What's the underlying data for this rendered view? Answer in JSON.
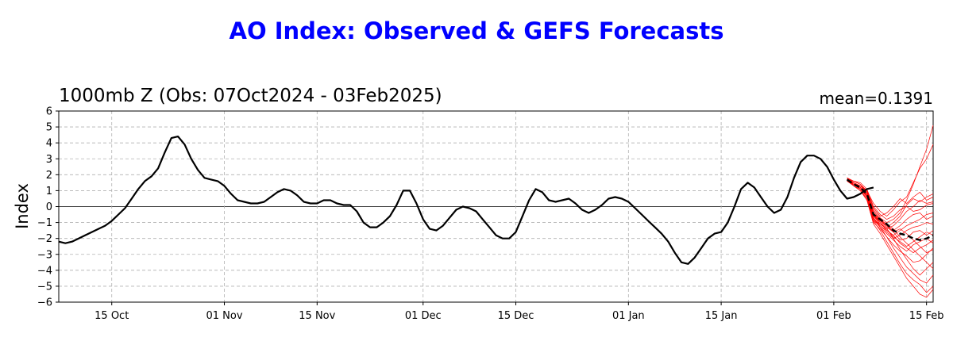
{
  "chart_data": {
    "type": "line",
    "title": "AO Index: Observed & GEFS Forecasts",
    "subtitle": "1000mb Z (Obs: 07Oct2024 - 03Feb2025)",
    "mean_label": "mean=0.1391",
    "ylabel": "Index",
    "xlim": [
      "2024-10-07",
      "2025-02-16"
    ],
    "ylim": [
      -6,
      6
    ],
    "yticks": [
      -6,
      -5,
      -4,
      -3,
      -2,
      -1,
      0,
      1,
      2,
      3,
      4,
      5,
      6
    ],
    "xticks": [
      {
        "date": "2024-10-15",
        "label": "15 Oct"
      },
      {
        "date": "2024-11-01",
        "label": "01 Nov"
      },
      {
        "date": "2024-11-15",
        "label": "15 Nov"
      },
      {
        "date": "2024-12-01",
        "label": "01 Dec"
      },
      {
        "date": "2024-12-15",
        "label": "15 Dec"
      },
      {
        "date": "2025-01-01",
        "label": "01 Jan"
      },
      {
        "date": "2025-01-15",
        "label": "15 Jan"
      },
      {
        "date": "2025-02-01",
        "label": "01 Feb"
      },
      {
        "date": "2025-02-15",
        "label": "15 Feb"
      }
    ],
    "grid": true,
    "colors": {
      "observed": "#000000",
      "ensemble": "#ff0000",
      "mean": "#000000",
      "title": "#0000ff"
    },
    "observed": {
      "start": "2024-10-07",
      "values": [
        -2.2,
        -2.3,
        -2.2,
        -2.0,
        -1.8,
        -1.6,
        -1.4,
        -1.2,
        -0.9,
        -0.5,
        -0.1,
        0.5,
        1.1,
        1.6,
        1.9,
        2.4,
        3.4,
        4.3,
        4.4,
        3.9,
        3.0,
        2.3,
        1.8,
        1.7,
        1.6,
        1.3,
        0.8,
        0.4,
        0.3,
        0.2,
        0.2,
        0.3,
        0.6,
        0.9,
        1.1,
        1.0,
        0.7,
        0.3,
        0.2,
        0.2,
        0.4,
        0.4,
        0.2,
        0.1,
        0.1,
        -0.3,
        -1.0,
        -1.3,
        -1.3,
        -1.0,
        -0.6,
        0.1,
        1.0,
        1.0,
        0.2,
        -0.8,
        -1.4,
        -1.5,
        -1.2,
        -0.7,
        -0.2,
        0.0,
        -0.1,
        -0.3,
        -0.8,
        -1.3,
        -1.8,
        -2.0,
        -2.0,
        -1.6,
        -0.6,
        0.4,
        1.1,
        0.9,
        0.4,
        0.3,
        0.4,
        0.5,
        0.2,
        -0.2,
        -0.4,
        -0.2,
        0.1,
        0.5,
        0.6,
        0.5,
        0.3,
        -0.1,
        -0.5,
        -0.9,
        -1.3,
        -1.7,
        -2.2,
        -2.9,
        -3.5,
        -3.6,
        -3.2,
        -2.6,
        -2.0,
        -1.7,
        -1.6,
        -1.0,
        0.0,
        1.1,
        1.5,
        1.2,
        0.6,
        0.0,
        -0.4,
        -0.2,
        0.6,
        1.8,
        2.8,
        3.2,
        3.2,
        3.0,
        2.5,
        1.7,
        1.0,
        0.5,
        0.6,
        0.8,
        1.1,
        1.2
      ]
    },
    "ensemble_mean": {
      "x": [
        "2025-02-03",
        "2025-02-04",
        "2025-02-05",
        "2025-02-06",
        "2025-02-07",
        "2025-02-08",
        "2025-02-09",
        "2025-02-10",
        "2025-02-11",
        "2025-02-12",
        "2025-02-13",
        "2025-02-14",
        "2025-02-15",
        "2025-02-16"
      ],
      "values": [
        1.7,
        1.4,
        1.2,
        0.8,
        -0.5,
        -0.8,
        -1.1,
        -1.5,
        -1.7,
        -1.8,
        -2.0,
        -2.1,
        -2.0,
        -1.8
      ]
    },
    "ensemble_members_start": "2025-02-03",
    "ensemble_members": [
      [
        1.8,
        1.5,
        1.3,
        1.0,
        0.2,
        -0.3,
        -0.6,
        -0.2,
        0.3,
        0.6,
        1.5,
        2.4,
        3.0,
        3.9
      ],
      [
        1.7,
        1.6,
        1.4,
        0.9,
        -0.2,
        -0.7,
        -1.0,
        -0.8,
        -0.4,
        0.4,
        1.4,
        2.5,
        3.6,
        5.1
      ],
      [
        1.8,
        1.5,
        1.1,
        0.6,
        -0.4,
        -0.9,
        -1.3,
        -1.0,
        -0.6,
        0.1,
        0.5,
        0.3,
        0.6,
        0.8
      ],
      [
        1.6,
        1.4,
        1.3,
        1.0,
        -0.1,
        -0.6,
        -0.4,
        0.0,
        0.5,
        0.2,
        0.6,
        0.9,
        0.4,
        0.6
      ],
      [
        1.7,
        1.3,
        1.0,
        0.5,
        -0.6,
        -1.1,
        -1.4,
        -1.2,
        -0.8,
        -0.3,
        0.0,
        0.4,
        0.2,
        0.3
      ],
      [
        1.8,
        1.6,
        1.5,
        1.1,
        0.0,
        -0.5,
        -0.8,
        -0.6,
        -0.2,
        0.0,
        -0.3,
        -0.2,
        0.1,
        0.2
      ],
      [
        1.7,
        1.4,
        1.2,
        0.7,
        -0.3,
        -0.8,
        -1.2,
        -1.5,
        -1.2,
        -0.8,
        -0.5,
        -0.4,
        -0.8,
        -0.6
      ],
      [
        1.6,
        1.5,
        1.2,
        0.8,
        -0.5,
        -1.0,
        -1.5,
        -1.8,
        -1.5,
        -1.2,
        -1.0,
        -0.8,
        -0.5,
        -0.4
      ],
      [
        1.8,
        1.3,
        1.1,
        0.6,
        -0.7,
        -1.2,
        -1.6,
        -2.0,
        -1.8,
        -1.5,
        -1.3,
        -1.2,
        -1.0,
        -1.1
      ],
      [
        1.7,
        1.5,
        1.3,
        0.9,
        -0.6,
        -0.9,
        -1.3,
        -1.6,
        -2.1,
        -2.0,
        -1.6,
        -1.5,
        -1.8,
        -1.5
      ],
      [
        1.6,
        1.4,
        1.1,
        0.7,
        -0.8,
        -1.1,
        -1.4,
        -1.9,
        -2.2,
        -2.5,
        -2.2,
        -1.9,
        -1.6,
        -1.8
      ],
      [
        1.8,
        1.5,
        1.2,
        0.8,
        -0.7,
        -1.3,
        -1.7,
        -2.1,
        -2.5,
        -2.8,
        -2.4,
        -2.2,
        -2.0,
        -2.3
      ],
      [
        1.7,
        1.4,
        1.2,
        0.6,
        -0.9,
        -1.2,
        -1.5,
        -1.8,
        -2.3,
        -2.6,
        -2.9,
        -2.6,
        -2.4,
        -2.1
      ],
      [
        1.6,
        1.3,
        1.0,
        0.5,
        -1.0,
        -1.4,
        -1.9,
        -2.4,
        -2.8,
        -3.1,
        -3.5,
        -3.4,
        -3.0,
        -2.6
      ],
      [
        1.7,
        1.5,
        1.3,
        0.9,
        -0.6,
        -1.0,
        -1.4,
        -2.0,
        -2.7,
        -3.3,
        -3.9,
        -4.3,
        -3.9,
        -3.5
      ],
      [
        1.8,
        1.4,
        1.1,
        0.7,
        -0.8,
        -1.3,
        -1.9,
        -2.6,
        -3.2,
        -3.8,
        -4.2,
        -4.6,
        -4.8,
        -4.3
      ],
      [
        1.6,
        1.5,
        1.2,
        0.8,
        -0.9,
        -1.5,
        -2.2,
        -2.9,
        -3.6,
        -4.2,
        -4.6,
        -4.9,
        -5.4,
        -5.0
      ],
      [
        1.7,
        1.3,
        1.0,
        0.4,
        -1.1,
        -1.7,
        -2.4,
        -3.1,
        -3.8,
        -4.5,
        -5.0,
        -5.5,
        -5.7,
        -5.2
      ],
      [
        1.8,
        1.6,
        1.4,
        1.0,
        -0.4,
        -0.8,
        -1.1,
        -1.4,
        -1.9,
        -2.3,
        -2.7,
        -3.1,
        -3.5,
        -3.9
      ],
      [
        1.7,
        1.4,
        1.2,
        0.7,
        -0.5,
        -0.9,
        -1.2,
        -1.6,
        -1.4,
        -1.7,
        -2.1,
        -2.5,
        -2.9,
        -2.7
      ]
    ]
  }
}
